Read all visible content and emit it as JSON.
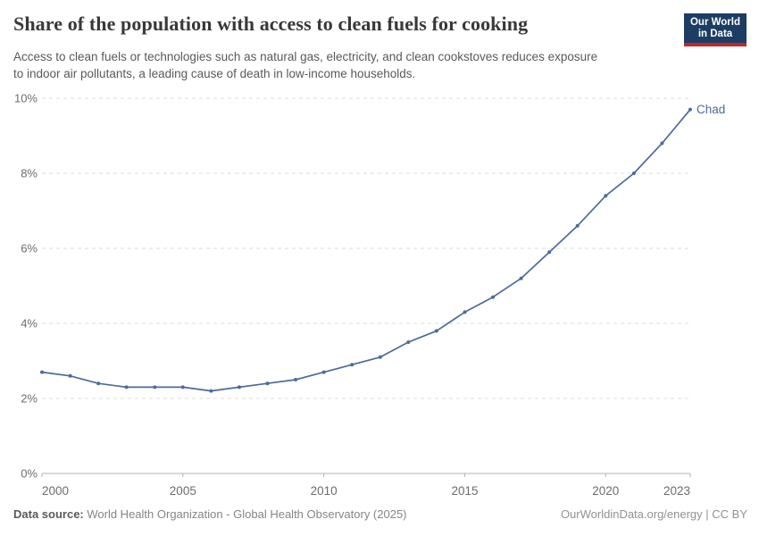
{
  "header": {
    "title": "Share of the population with access to clean fuels for cooking",
    "subtitle_line1": "Access to clean fuels or technologies such as natural gas, electricity, and clean cookstoves reduces exposure",
    "subtitle_line2": "to indoor air pollutants, a leading cause of death in low-income households.",
    "logo": {
      "line1": "Our World",
      "line2": "in Data"
    }
  },
  "footer": {
    "source_label": "Data source:",
    "source_text": " World Health Organization - Global Health Observatory (2025)",
    "credit": "OurWorldinData.org/energy | CC BY"
  },
  "colors": {
    "line": "#4c6a9c",
    "series_label": "#4c6a9c",
    "grid": "#dcdcdc",
    "axis": "#b3b3b3",
    "tick_text": "#6c6c6c",
    "logo_bg": "#1d3d63",
    "logo_stripe": "#c0272d"
  },
  "chart_data": {
    "type": "line",
    "title": "Share of the population with access to clean fuels for cooking",
    "x": [
      2000,
      2001,
      2002,
      2003,
      2004,
      2005,
      2006,
      2007,
      2008,
      2009,
      2010,
      2011,
      2012,
      2013,
      2014,
      2015,
      2016,
      2017,
      2018,
      2019,
      2020,
      2021,
      2022,
      2023
    ],
    "series": [
      {
        "name": "Chad",
        "values": [
          2.7,
          2.6,
          2.4,
          2.3,
          2.3,
          2.3,
          2.2,
          2.3,
          2.4,
          2.5,
          2.7,
          2.9,
          3.1,
          3.5,
          3.8,
          4.3,
          4.7,
          5.2,
          5.9,
          6.6,
          7.4,
          8.0,
          8.8,
          9.7
        ]
      }
    ],
    "xlim": [
      2000,
      2023
    ],
    "ylim": [
      0,
      10
    ],
    "yticks": [
      0,
      2,
      4,
      6,
      8,
      10
    ],
    "ytick_labels": [
      "0%",
      "2%",
      "4%",
      "6%",
      "8%",
      "10%"
    ],
    "xticks": [
      2000,
      2005,
      2010,
      2015,
      2020,
      2023
    ],
    "xtick_labels": [
      "2000",
      "2005",
      "2010",
      "2015",
      "2020",
      "2023"
    ],
    "grid": "horizontal-dashed",
    "legend": "end-of-line-label"
  }
}
